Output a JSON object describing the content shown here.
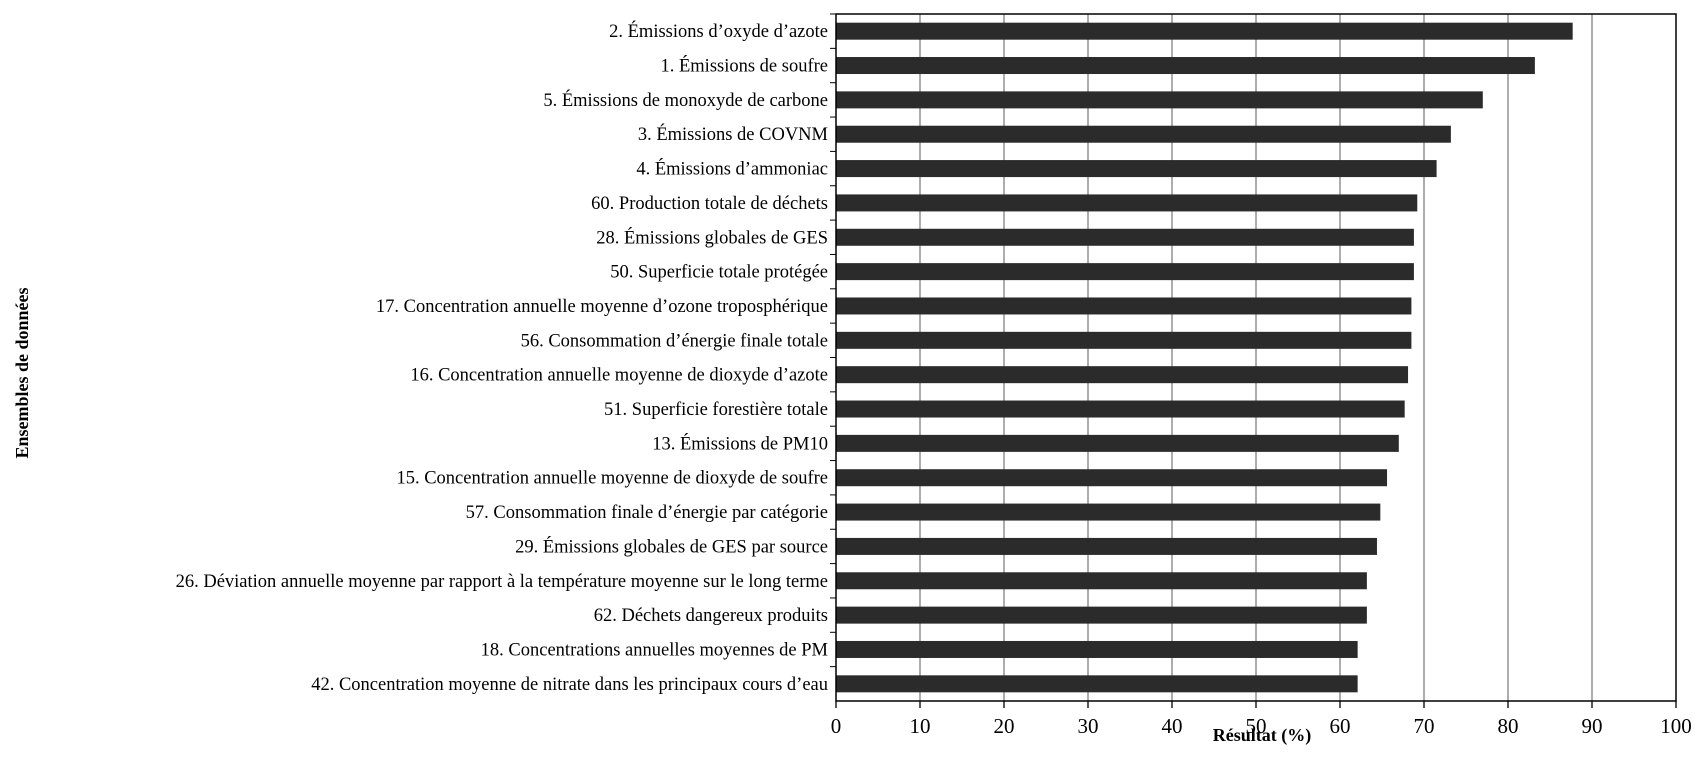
{
  "chart_data": {
    "type": "bar",
    "orientation": "horizontal",
    "xlabel": "Résultat (%)",
    "ylabel": "Ensembles de données",
    "xlim": [
      0,
      100
    ],
    "xticks": [
      "0",
      "10",
      "20",
      "30",
      "40",
      "50",
      "60",
      "70",
      "80",
      "90",
      "100"
    ],
    "grid": "vertical",
    "bar_color": "#2b2b2b",
    "categories": [
      "2. Émissions d’oxyde d’azote",
      "1. Émissions de soufre",
      "5. Émissions de monoxyde de carbone",
      "3. Émissions de COVNM",
      "4. Émissions d’ammoniac",
      "60. Production totale de déchets",
      "28. Émissions globales de GES",
      "50. Superficie totale protégée",
      "17. Concentration annuelle moyenne d’ozone troposphérique",
      "56. Consommation d’énergie finale totale",
      "16. Concentration annuelle moyenne de dioxyde d’azote",
      "51. Superficie forestière totale",
      "13. Émissions de PM10",
      "15. Concentration annuelle moyenne de dioxyde de soufre",
      "57. Consommation finale d’énergie par catégorie",
      "29. Émissions globales de GES par source",
      "26. Déviation annuelle moyenne par rapport à la température moyenne sur le long terme",
      "62. Déchets dangereux produits",
      "18. Concentrations annuelles moyennes de PM",
      "42. Concentration moyenne de nitrate dans les principaux cours d’eau"
    ],
    "values": [
      87.7,
      83.2,
      77.0,
      73.2,
      71.5,
      69.2,
      68.8,
      68.8,
      68.5,
      68.5,
      68.1,
      67.7,
      67.0,
      65.6,
      64.8,
      64.4,
      63.2,
      63.2,
      62.1,
      62.1
    ]
  }
}
